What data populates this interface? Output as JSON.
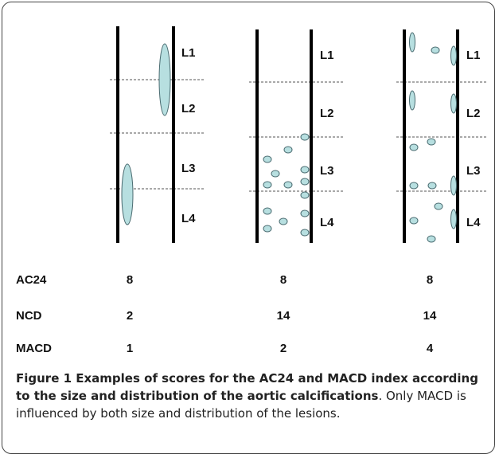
{
  "panels": [
    {
      "levels": [
        "L1",
        "L2",
        "L3",
        "L4"
      ]
    },
    {
      "levels": [
        "L1",
        "L2",
        "L3",
        "L4"
      ]
    },
    {
      "levels": [
        "L1",
        "L2",
        "L3",
        "L4"
      ]
    }
  ],
  "table": {
    "rows": [
      {
        "label": "AC24",
        "values": [
          8,
          8,
          8
        ]
      },
      {
        "label": "NCD",
        "values": [
          2,
          14,
          14
        ]
      },
      {
        "label": "MACD",
        "values": [
          1,
          2,
          4
        ]
      }
    ]
  },
  "caption": {
    "title": "Figure 1 Examples of scores for the AC24 and MACD index according to the size and distribution of the aortic calcifications",
    "text": ". Only MACD is influenced by both size and distribution of the lesions."
  }
}
